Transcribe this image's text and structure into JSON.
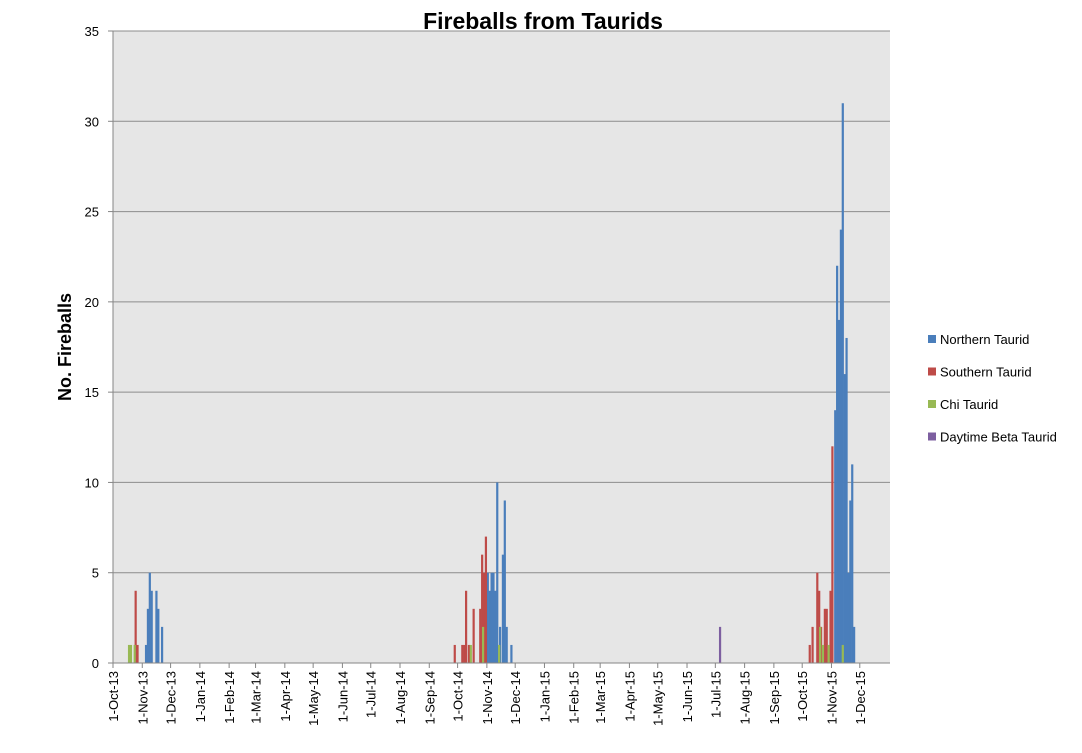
{
  "chart_data": {
    "type": "bar",
    "title": "Fireballs from Taurids",
    "y_label": "No. Fireballs",
    "ylim": [
      0,
      35
    ],
    "yticks": [
      0,
      5,
      10,
      15,
      20,
      25,
      30,
      35
    ],
    "xlim": [
      "2013-10-01",
      "2016-01-02"
    ],
    "xticks": [
      {
        "value": "2013-10-01",
        "label": "1-Oct-13"
      },
      {
        "value": "2013-11-01",
        "label": "1-Nov-13"
      },
      {
        "value": "2013-12-01",
        "label": "1-Dec-13"
      },
      {
        "value": "2014-01-01",
        "label": "1-Jan-14"
      },
      {
        "value": "2014-02-01",
        "label": "1-Feb-14"
      },
      {
        "value": "2014-03-01",
        "label": "1-Mar-14"
      },
      {
        "value": "2014-04-01",
        "label": "1-Apr-14"
      },
      {
        "value": "2014-05-01",
        "label": "1-May-14"
      },
      {
        "value": "2014-06-01",
        "label": "1-Jun-14"
      },
      {
        "value": "2014-07-01",
        "label": "1-Jul-14"
      },
      {
        "value": "2014-08-01",
        "label": "1-Aug-14"
      },
      {
        "value": "2014-09-01",
        "label": "1-Sep-14"
      },
      {
        "value": "2014-10-01",
        "label": "1-Oct-14"
      },
      {
        "value": "2014-11-01",
        "label": "1-Nov-14"
      },
      {
        "value": "2014-12-01",
        "label": "1-Dec-14"
      },
      {
        "value": "2015-01-01",
        "label": "1-Jan-15"
      },
      {
        "value": "2015-02-01",
        "label": "1-Feb-15"
      },
      {
        "value": "2015-03-01",
        "label": "1-Mar-15"
      },
      {
        "value": "2015-04-01",
        "label": "1-Apr-15"
      },
      {
        "value": "2015-05-01",
        "label": "1-May-15"
      },
      {
        "value": "2015-06-01",
        "label": "1-Jun-15"
      },
      {
        "value": "2015-07-01",
        "label": "1-Jul-15"
      },
      {
        "value": "2015-08-01",
        "label": "1-Aug-15"
      },
      {
        "value": "2015-09-01",
        "label": "1-Sep-15"
      },
      {
        "value": "2015-10-01",
        "label": "1-Oct-15"
      },
      {
        "value": "2015-11-01",
        "label": "1-Nov-15"
      },
      {
        "value": "2015-12-01",
        "label": "1-Dec-15"
      }
    ],
    "grid": true,
    "series": [
      {
        "name": "Northern Taurid",
        "color": "#4a7ebb",
        "x": [
          "2013-11-05",
          "2013-11-07",
          "2013-11-09",
          "2013-11-11",
          "2013-11-16",
          "2013-11-18",
          "2013-11-22",
          "2014-11-02",
          "2014-11-04",
          "2014-11-06",
          "2014-11-08",
          "2014-11-10",
          "2014-11-12",
          "2014-11-15",
          "2014-11-18",
          "2014-11-20",
          "2014-11-22",
          "2014-11-27",
          "2015-11-05",
          "2015-11-07",
          "2015-11-09",
          "2015-11-11",
          "2015-11-13",
          "2015-11-15",
          "2015-11-17",
          "2015-11-19",
          "2015-11-21",
          "2015-11-23",
          "2015-11-25"
        ],
        "values": [
          1,
          3,
          5,
          4,
          4,
          3,
          2,
          5,
          4,
          5,
          5,
          4,
          10,
          2,
          6,
          9,
          2,
          1,
          14,
          22,
          19,
          24,
          31,
          16,
          18,
          5,
          9,
          11,
          2
        ]
      },
      {
        "name": "Southern Taurid",
        "color": "#be4b48",
        "x": [
          "2013-10-25",
          "2013-10-27",
          "2014-09-28",
          "2014-10-06",
          "2014-10-08",
          "2014-10-10",
          "2014-10-13",
          "2014-10-18",
          "2014-10-25",
          "2014-10-27",
          "2014-10-29",
          "2014-10-31",
          "2015-10-09",
          "2015-10-12",
          "2015-10-17",
          "2015-10-19",
          "2015-10-21",
          "2015-10-25",
          "2015-10-27",
          "2015-10-31",
          "2015-11-02"
        ],
        "values": [
          4,
          1,
          1,
          1,
          1,
          4,
          1,
          3,
          3,
          6,
          5,
          7,
          1,
          2,
          5,
          4,
          2,
          3,
          3,
          4,
          12
        ]
      },
      {
        "name": "Chi Taurid",
        "color": "#98b954",
        "x": [
          "2013-10-18",
          "2013-10-20",
          "2013-10-24",
          "2014-10-15",
          "2014-10-28",
          "2014-11-14",
          "2015-10-20",
          "2015-10-23",
          "2015-10-29",
          "2015-11-13"
        ],
        "values": [
          1,
          1,
          1,
          1,
          2,
          1,
          2,
          1,
          1,
          1
        ]
      },
      {
        "name": "Daytime Beta Taurid",
        "color": "#7d5fa0",
        "x": [
          "2015-07-06"
        ],
        "values": [
          2
        ]
      }
    ]
  }
}
